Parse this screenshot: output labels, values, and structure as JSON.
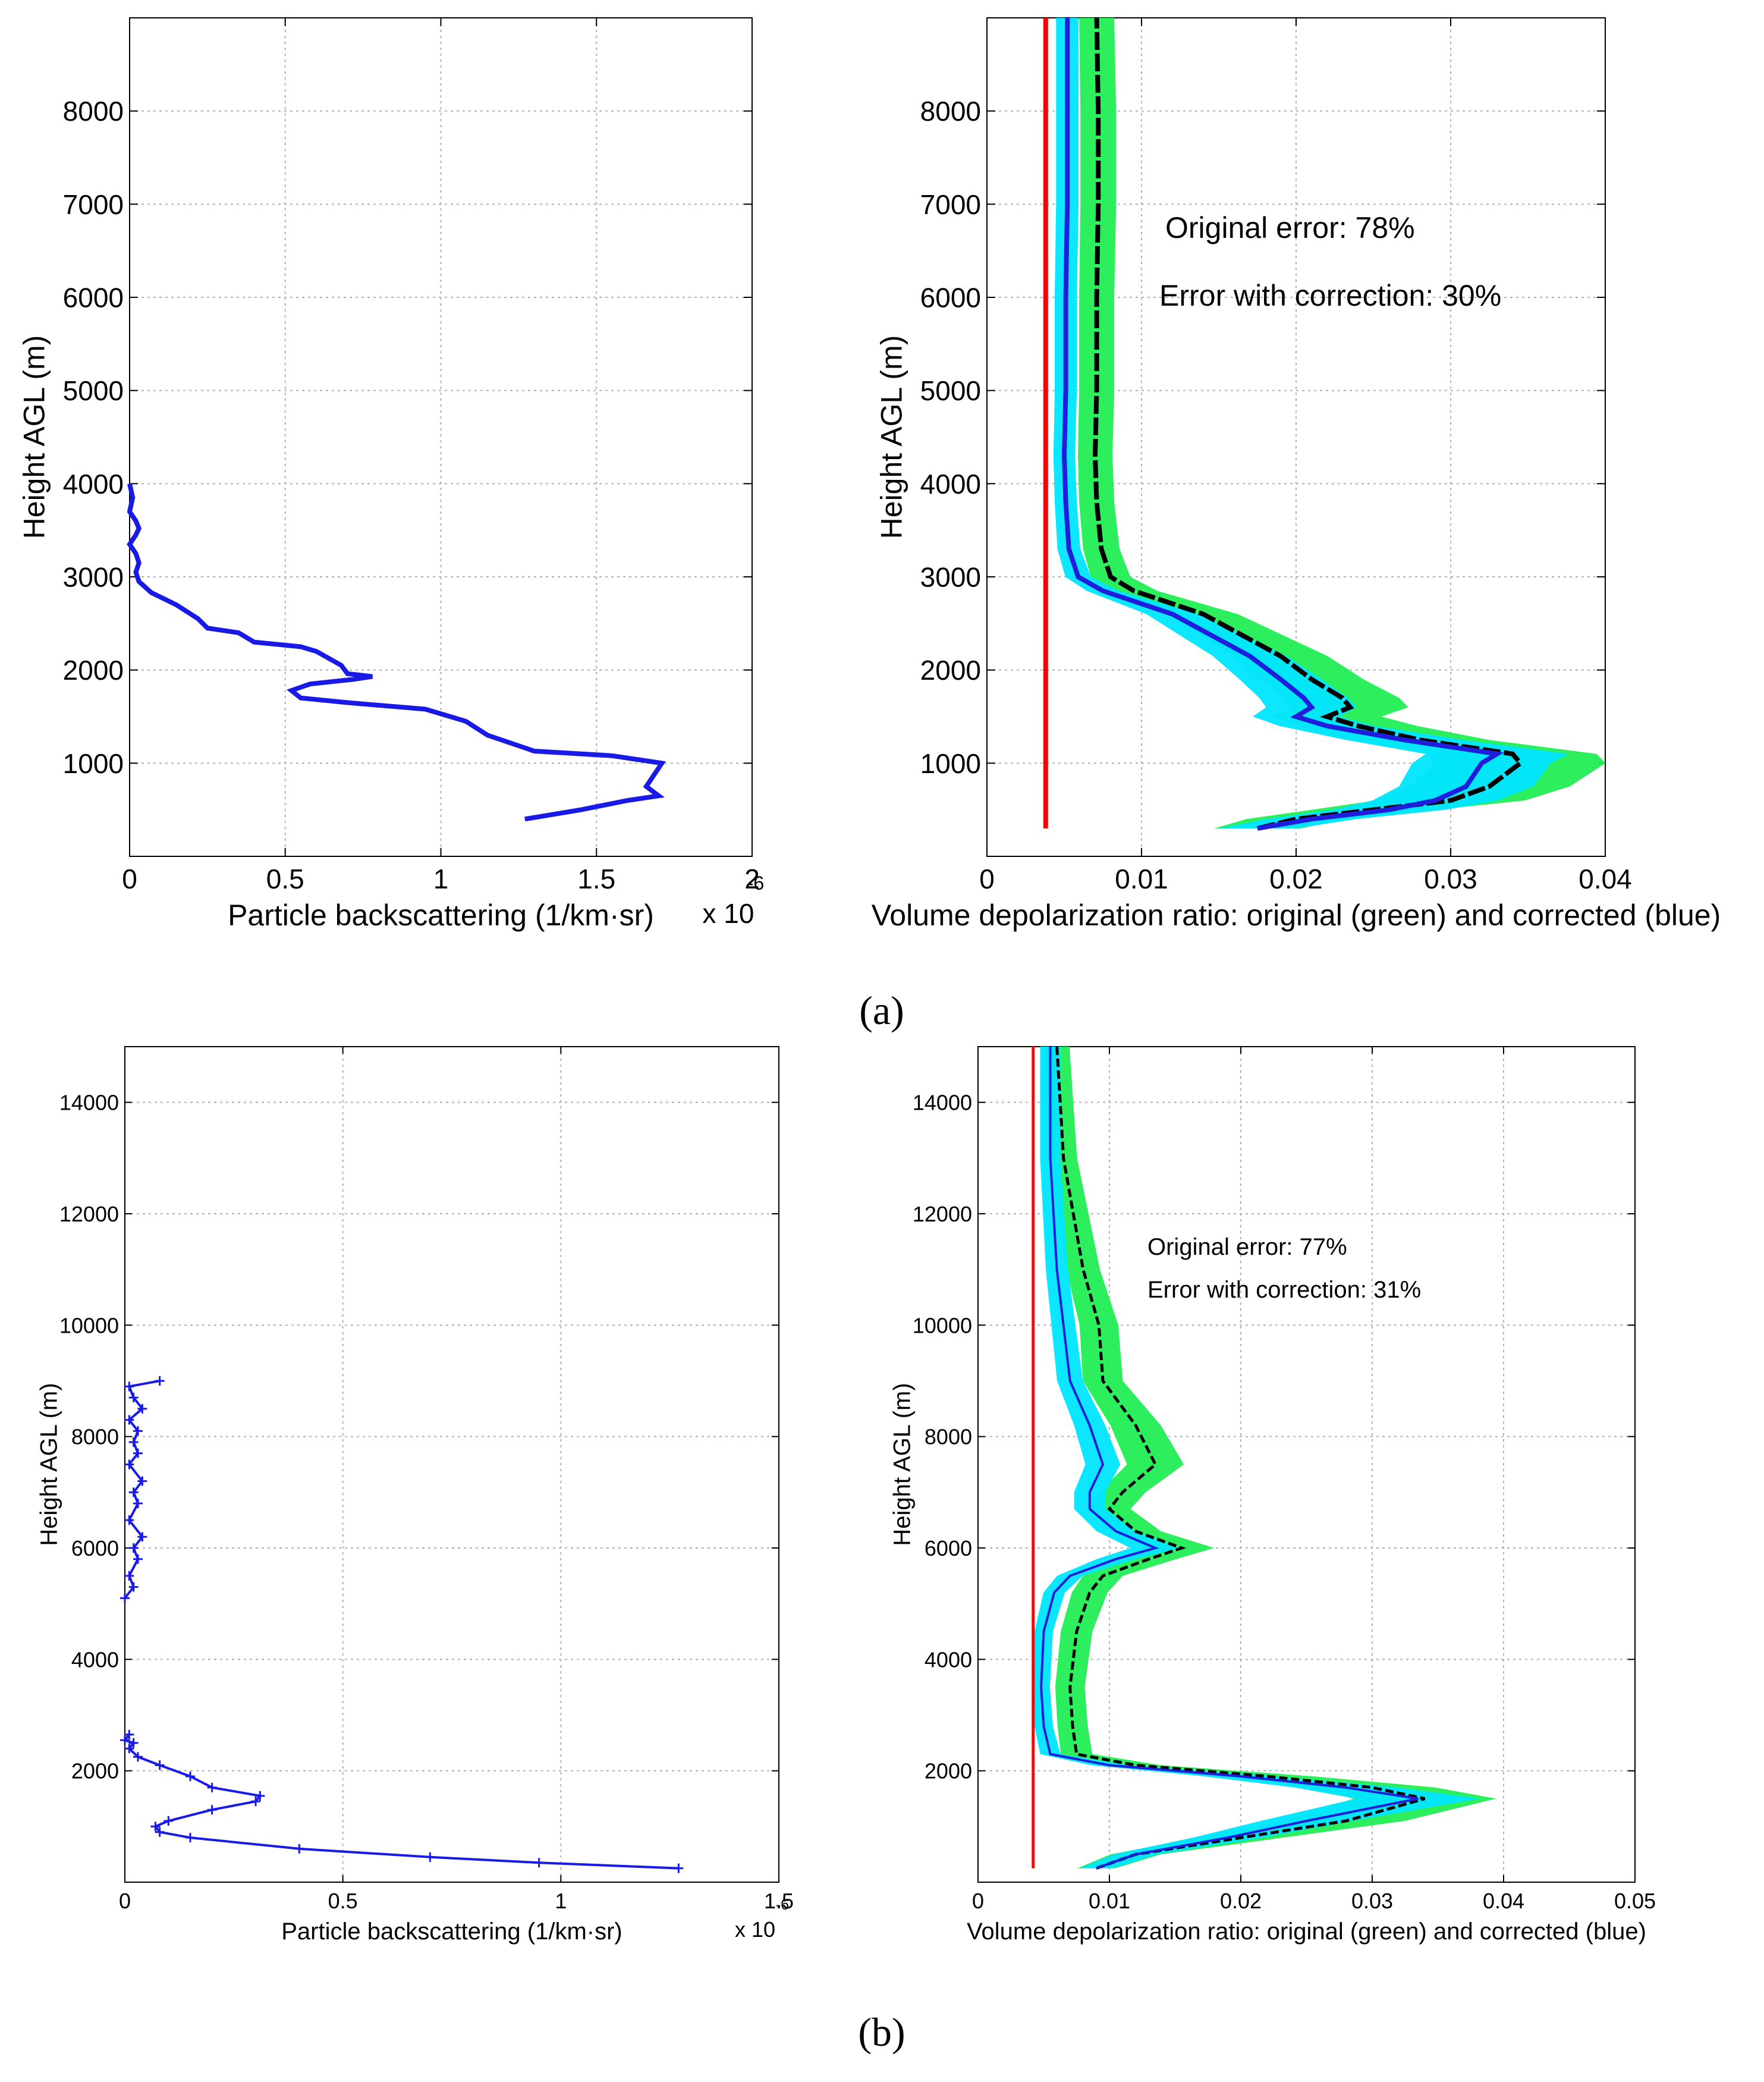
{
  "panels": [
    {
      "label": "(a)",
      "letter": "a"
    },
    {
      "label": "(b)",
      "letter": "b"
    }
  ],
  "colors": {
    "backscatter": "#1a1ae6",
    "original": "#00ff40",
    "original_band": "#22ee55",
    "corrected_band": "#00e5ff",
    "corrected": "#1e1edc",
    "reference": "#ff0000",
    "mean": "#000000",
    "grid": "#b0b0b0"
  },
  "chart_data": [
    {
      "type": "line",
      "panel": "a",
      "title": "",
      "xlabel": "Particle backscattering (1/km·sr)",
      "ylabel": "Height AGL (m)",
      "xlim": [
        0,
        2
      ],
      "ylim": [
        0,
        9000
      ],
      "xticks": [
        "0",
        "0.5",
        "1",
        "1.5",
        "2"
      ],
      "yticks": [
        "1000",
        "2000",
        "3000",
        "4000",
        "5000",
        "6000",
        "7000",
        "8000"
      ],
      "x_multiplier": "x 10",
      "x_exponent": "-6",
      "grid": true,
      "series": [
        {
          "name": "backscatter",
          "x": [
            1.27,
            1.45,
            1.6,
            1.7,
            1.66,
            1.68,
            1.71,
            1.55,
            1.3,
            1.15,
            1.08,
            0.95,
            0.7,
            0.55,
            0.52,
            0.58,
            0.72,
            0.78,
            0.7,
            0.68,
            0.6,
            0.55,
            0.4,
            0.35,
            0.25,
            0.22,
            0.15,
            0.07,
            0.03,
            0.02,
            0.03,
            0.02,
            0.0,
            0.02,
            0.03,
            0.02,
            0.0,
            0.01,
            0.0
          ],
          "y": [
            400,
            500,
            600,
            650,
            750,
            850,
            1000,
            1080,
            1130,
            1300,
            1450,
            1580,
            1650,
            1700,
            1780,
            1850,
            1900,
            1930,
            1960,
            2050,
            2200,
            2250,
            2300,
            2400,
            2450,
            2550,
            2700,
            2830,
            2950,
            3050,
            3150,
            3250,
            3350,
            3450,
            3520,
            3600,
            3700,
            3850,
            4000
          ]
        }
      ]
    },
    {
      "type": "line",
      "panel": "a",
      "title": "",
      "xlabel": "Volume depolarization ratio: original (green) and corrected (blue)",
      "ylabel": "Height AGL (m)",
      "xlim": [
        0,
        0.04
      ],
      "ylim": [
        0,
        9000
      ],
      "xticks": [
        "0",
        "0.01",
        "0.02",
        "0.03",
        "0.04"
      ],
      "yticks": [
        "1000",
        "2000",
        "3000",
        "4000",
        "5000",
        "6000",
        "7000",
        "8000"
      ],
      "grid": true,
      "annotations": [
        "Original error: 78%",
        "Error with correction: 30%"
      ],
      "reference_line": {
        "x": 0.0038,
        "y": [
          300,
          9000
        ]
      },
      "series": [
        {
          "name": "original",
          "x": [
            0.0175,
            0.02,
            0.025,
            0.03,
            0.0325,
            0.0345,
            0.034,
            0.028,
            0.024,
            0.022,
            0.0235,
            0.023,
            0.021,
            0.019,
            0.014,
            0.0095,
            0.008,
            0.0074,
            0.0071,
            0.007,
            0.0071,
            0.0071,
            0.0072,
            0.0072,
            0.0071
          ],
          "y": [
            300,
            400,
            500,
            600,
            750,
            1000,
            1100,
            1250,
            1400,
            1500,
            1600,
            1700,
            1900,
            2150,
            2600,
            2850,
            3000,
            3300,
            3800,
            4300,
            5000,
            6000,
            7000,
            8000,
            9000
          ]
        },
        {
          "name": "corrected",
          "x": [
            0.0175,
            0.021,
            0.026,
            0.029,
            0.031,
            0.032,
            0.033,
            0.027,
            0.022,
            0.02,
            0.021,
            0.0205,
            0.019,
            0.017,
            0.012,
            0.0075,
            0.0059,
            0.0053,
            0.0051,
            0.005,
            0.0051,
            0.0051,
            0.0052,
            0.0052,
            0.0052
          ],
          "y": [
            300,
            400,
            500,
            600,
            750,
            1000,
            1100,
            1250,
            1400,
            1500,
            1600,
            1700,
            1900,
            2150,
            2600,
            2850,
            3000,
            3300,
            3800,
            4300,
            5000,
            6000,
            7000,
            8000,
            9000
          ]
        }
      ]
    },
    {
      "type": "line",
      "panel": "b",
      "title": "",
      "xlabel": "Particle backscattering (1/km·sr)",
      "ylabel": "Height AGL (m)",
      "xlim": [
        0,
        1.5
      ],
      "ylim": [
        0,
        15000
      ],
      "xticks": [
        "0",
        "0.5",
        "1",
        "1.5"
      ],
      "yticks": [
        "2000",
        "4000",
        "6000",
        "8000",
        "10000",
        "12000",
        "14000"
      ],
      "x_multiplier": "x 10",
      "x_exponent": "-6",
      "grid": true,
      "series": [
        {
          "name": "backscatter",
          "x": [
            1.27,
            0.95,
            0.7,
            0.4,
            0.15,
            0.08,
            0.07,
            0.1,
            0.2,
            0.3,
            0.31,
            0.2,
            0.15,
            0.08,
            0.03,
            0.01,
            0.02,
            0.0,
            0.01
          ],
          "y": [
            250,
            350,
            450,
            600,
            800,
            900,
            1000,
            1100,
            1300,
            1450,
            1550,
            1700,
            1900,
            2100,
            2250,
            2400,
            2500,
            2550,
            2650
          ]
        },
        {
          "name": "backscatter_upper",
          "x": [
            0.0,
            0.02,
            0.01,
            0.03,
            0.02,
            0.04,
            0.01,
            0.03,
            0.02,
            0.04,
            0.01,
            0.03,
            0.02,
            0.03,
            0.01,
            0.04,
            0.02,
            0.01,
            0.08
          ],
          "y": [
            5100,
            5300,
            5500,
            5800,
            6000,
            6200,
            6500,
            6800,
            7000,
            7200,
            7500,
            7700,
            7900,
            8100,
            8300,
            8500,
            8700,
            8900,
            9000
          ]
        }
      ]
    },
    {
      "type": "line",
      "panel": "b",
      "title": "",
      "xlabel": "Volume depolarization ratio: original (green) and corrected (blue)",
      "ylabel": "Height AGL (m)",
      "xlim": [
        0,
        0.05
      ],
      "ylim": [
        0,
        15000
      ],
      "xticks": [
        "0",
        "0.01",
        "0.02",
        "0.03",
        "0.04",
        "0.05"
      ],
      "yticks": [
        "2000",
        "4000",
        "6000",
        "8000",
        "10000",
        "12000",
        "14000"
      ],
      "grid": true,
      "annotations": [
        "Original error: 77%",
        "Error with correction: 31%"
      ],
      "reference_line": {
        "x": 0.0042,
        "y": [
          250,
          15000
        ]
      },
      "series": [
        {
          "name": "original",
          "x": [
            0.009,
            0.012,
            0.02,
            0.028,
            0.034,
            0.03,
            0.022,
            0.012,
            0.0075,
            0.0072,
            0.007,
            0.0075,
            0.0085,
            0.0095,
            0.013,
            0.0155,
            0.012,
            0.01,
            0.011,
            0.0135,
            0.012,
            0.0095,
            0.0092,
            0.008,
            0.0065,
            0.006
          ],
          "y": [
            250,
            500,
            800,
            1100,
            1500,
            1700,
            1900,
            2100,
            2300,
            2800,
            3500,
            4500,
            5200,
            5500,
            5800,
            6000,
            6300,
            6700,
            7000,
            7500,
            8200,
            9000,
            10000,
            11000,
            13000,
            15000
          ]
        },
        {
          "name": "corrected",
          "x": [
            0.009,
            0.012,
            0.019,
            0.025,
            0.0335,
            0.028,
            0.02,
            0.01,
            0.0055,
            0.005,
            0.0048,
            0.005,
            0.0058,
            0.007,
            0.0105,
            0.0135,
            0.0105,
            0.0085,
            0.0085,
            0.0095,
            0.0085,
            0.007,
            0.0065,
            0.006,
            0.0055,
            0.0055
          ],
          "y": [
            250,
            500,
            800,
            1100,
            1500,
            1700,
            1900,
            2100,
            2300,
            2800,
            3500,
            4500,
            5200,
            5500,
            5800,
            6000,
            6300,
            6700,
            7000,
            7500,
            8200,
            9000,
            10000,
            11000,
            13000,
            15000
          ]
        }
      ]
    }
  ]
}
